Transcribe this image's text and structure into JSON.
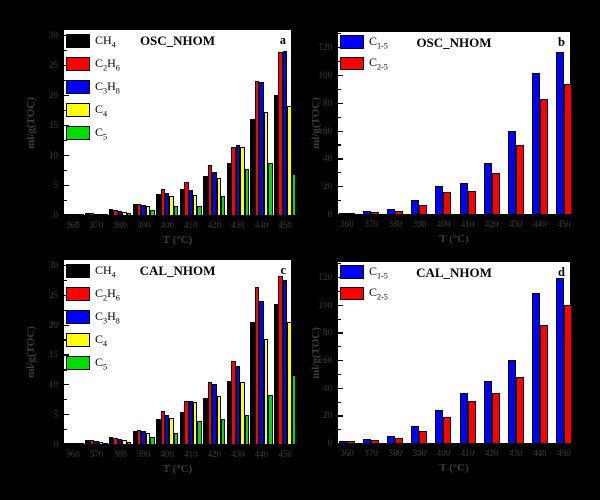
{
  "figure": {
    "background": "#000000",
    "outside_text_color": "#3c3c3c",
    "xlabel": "T (°C)",
    "ylabel": "ml/g(TOC)"
  },
  "chart_data": [
    {
      "id": "a",
      "type": "bar",
      "title": "OSC_NHOM",
      "panel_letter": "a",
      "xlabel": "T (°C)",
      "ylabel": "ml/g(TOC)",
      "categories": [
        "360",
        "370",
        "380",
        "390",
        "400",
        "410",
        "420",
        "430",
        "440",
        "450"
      ],
      "ylim": [
        0,
        30
      ],
      "yticks": [
        0,
        5,
        10,
        15,
        20,
        25,
        30
      ],
      "grid": false,
      "legend_position": "top-left",
      "series": [
        {
          "name": "CH_4",
          "color": "#000000",
          "values": [
            0.25,
            0.4,
            0.95,
            1.8,
            3.5,
            4.4,
            6.5,
            8.7,
            16.0,
            20.0
          ]
        },
        {
          "name": "C_2H_6",
          "color": "#ff0000",
          "values": [
            0.2,
            0.3,
            0.8,
            1.9,
            4.4,
            5.5,
            8.4,
            11.4,
            22.3,
            27.1
          ]
        },
        {
          "name": "C_3H_8",
          "color": "#0000ff",
          "values": [
            0.15,
            0.25,
            0.65,
            1.7,
            3.6,
            4.2,
            7.2,
            11.6,
            22.1,
            27.3
          ]
        },
        {
          "name": "C_4",
          "color": "#ffff00",
          "values": [
            0.12,
            0.2,
            0.5,
            1.5,
            3.2,
            3.3,
            6.1,
            11.4,
            17.2,
            18.1
          ]
        },
        {
          "name": "C_5",
          "color": "#00dd00",
          "values": [
            0.06,
            0.1,
            0.3,
            0.9,
            1.5,
            1.5,
            3.1,
            7.6,
            8.6,
            6.8
          ]
        }
      ]
    },
    {
      "id": "b",
      "type": "bar",
      "title": "OSC_NHOM",
      "panel_letter": "b",
      "xlabel": "T (°C)",
      "ylabel": "ml/g(TOC)",
      "categories": [
        "360",
        "370",
        "380",
        "390",
        "400",
        "410",
        "420",
        "430",
        "440",
        "450"
      ],
      "ylim": [
        0,
        120
      ],
      "yticks": [
        0,
        20,
        40,
        60,
        80,
        100,
        120
      ],
      "grid": false,
      "legend_position": "top-left",
      "series": [
        {
          "name": "C_1-5",
          "color": "#0000ff",
          "values": [
            0.8,
            2.3,
            3.5,
            9.9,
            19.9,
            22.3,
            36.8,
            59.9,
            101.6,
            116.7
          ]
        },
        {
          "name": "C_2-5",
          "color": "#ff0000",
          "values": [
            0.5,
            1.5,
            2.4,
            6.8,
            16.0,
            16.9,
            29.4,
            49.8,
            82.9,
            93.7
          ]
        }
      ]
    },
    {
      "id": "c",
      "type": "bar",
      "title": "CAL_NHOM",
      "panel_letter": "c",
      "xlabel": "T (°C)",
      "ylabel": "ml/g(TOC)",
      "categories": [
        "360",
        "370",
        "380",
        "390",
        "400",
        "410",
        "420",
        "430",
        "440",
        "450"
      ],
      "ylim": [
        0,
        30
      ],
      "yticks": [
        0,
        5,
        10,
        15,
        20,
        25,
        30
      ],
      "grid": false,
      "legend_position": "top-left",
      "series": [
        {
          "name": "CH_4",
          "color": "#000000",
          "values": [
            0.2,
            0.6,
            1.1,
            2.2,
            4.2,
            5.4,
            7.7,
            10.6,
            20.4,
            23.5
          ]
        },
        {
          "name": "C_2H_6",
          "color": "#ff0000",
          "values": [
            0.2,
            0.6,
            1.0,
            2.3,
            5.5,
            7.2,
            10.3,
            13.9,
            26.2,
            28.1
          ]
        },
        {
          "name": "C_3H_8",
          "color": "#0000ff",
          "values": [
            0.15,
            0.5,
            0.85,
            2.2,
            4.9,
            7.2,
            10.0,
            13.0,
            24.0,
            27.5
          ]
        },
        {
          "name": "C_4",
          "color": "#ffff00",
          "values": [
            0.1,
            0.4,
            0.7,
            1.9,
            4.4,
            7.1,
            8.0,
            10.4,
            17.5,
            20.4
          ]
        },
        {
          "name": "C_5",
          "color": "#00dd00",
          "values": [
            0.05,
            0.2,
            0.3,
            1.2,
            1.8,
            3.9,
            4.2,
            4.9,
            8.2,
            11.6
          ]
        }
      ]
    },
    {
      "id": "d",
      "type": "bar",
      "title": "CAL_NHOM",
      "panel_letter": "d",
      "xlabel": "T (°C)",
      "ylabel": "ml/g(TOC)",
      "categories": [
        "360",
        "370",
        "380",
        "390",
        "400",
        "410",
        "420",
        "430",
        "440",
        "450"
      ],
      "ylim": [
        0,
        120
      ],
      "yticks": [
        0,
        20,
        40,
        60,
        80,
        100,
        120
      ],
      "grid": false,
      "legend_position": "top-left",
      "series": [
        {
          "name": "C_1-5",
          "color": "#0000ff",
          "values": [
            1.6,
            3.1,
            5.2,
            12.2,
            24.2,
            36.0,
            44.7,
            60.1,
            108.8,
            119.0
          ]
        },
        {
          "name": "C_2-5",
          "color": "#ff0000",
          "values": [
            1.2,
            2.3,
            3.7,
            9.0,
            18.9,
            30.2,
            36.0,
            47.6,
            85.3,
            100.1
          ]
        }
      ]
    }
  ]
}
